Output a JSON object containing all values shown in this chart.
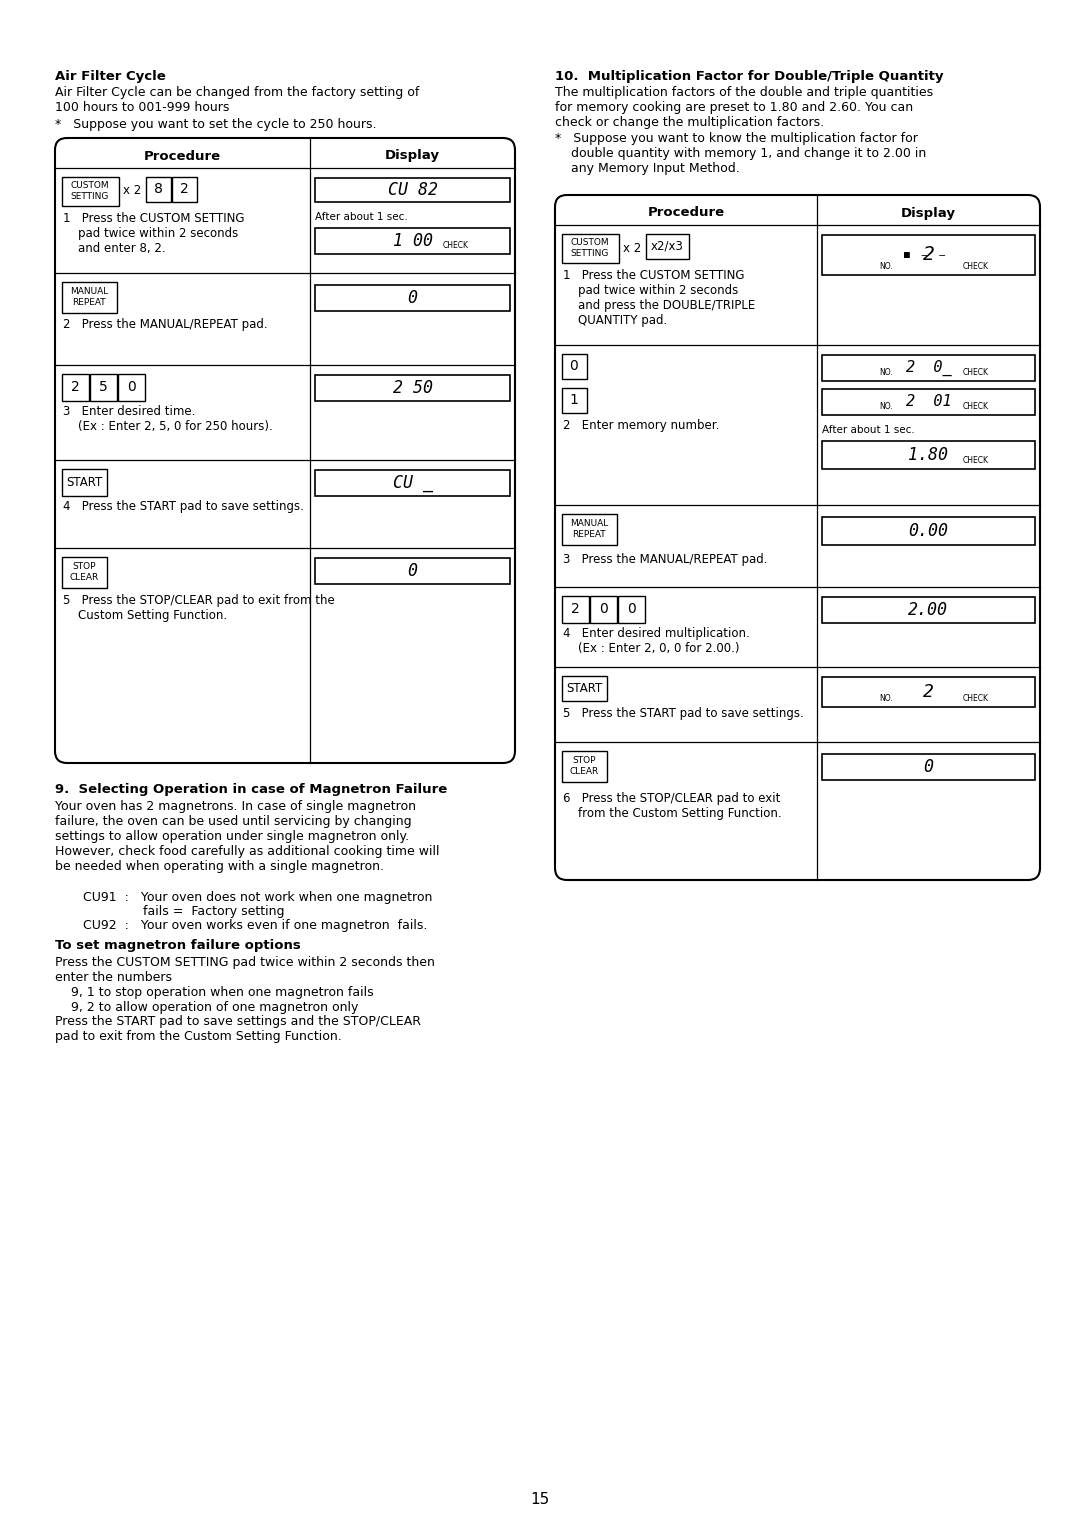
{
  "bg_color": "#ffffff",
  "page_num": "15",
  "left_col": {
    "title": "Air Filter Cycle",
    "para1": "Air Filter Cycle can be changed from the factory setting of\n100 hours to 001-999 hours",
    "bullet1": "*   Suppose you want to set the cycle to 250 hours.",
    "table_header_proc": "Procedure",
    "table_header_disp": "Display",
    "row1_disp_main": "CU 82",
    "row1_after": "After about 1 sec.",
    "row1_disp_sub": "1 00",
    "row1_check": "CHECK",
    "row1_step": "1   Press the CUSTOM SETTING\n    pad twice within 2 seconds\n    and enter 8, 2.",
    "row2_disp": "0",
    "row2_step": "2   Press the MANUAL/REPEAT pad.",
    "row3_keys": [
      "2",
      "5",
      "0"
    ],
    "row3_disp": "2 50",
    "row3_step": "3   Enter desired time.\n    (Ex : Enter 2, 5, 0 for 250 hours).",
    "row4_disp": "CU _",
    "row4_step": "4   Press the START pad to save settings.",
    "row5_disp": "0",
    "row5_step": "5   Press the STOP/CLEAR pad to exit from the\n    Custom Setting Function.",
    "sec9_title": "9.  Selecting Operation in case of Magnetron Failure",
    "sec9_para": "Your oven has 2 magnetrons. In case of single magnetron\nfailure, the oven can be used until servicing by changing\nsettings to allow operation under single magnetron only.\nHowever, check food carefully as additional cooking time will\nbe needed when operating with a single magnetron.",
    "sec9_cu91a": "    CU91  :   Your oven does not work when one magnetron",
    "sec9_cu91b": "                   fails =  Factory setting",
    "sec9_cu92": "    CU92  :   Your oven works even if one magnetron  fails.",
    "sec9_sub_title": "To set magnetron failure options",
    "sec9_sub_para": "Press the CUSTOM SETTING pad twice within 2 seconds then\nenter the numbers\n    9, 1 to stop operation when one magnetron fails\n    9, 2 to allow operation of one magnetron only",
    "sec9_footer": "Press the START pad to save settings and the STOP/CLEAR\npad to exit from the Custom Setting Function."
  },
  "right_col": {
    "title": "10.  Multiplication Factor for Double/Triple Quantity",
    "para1": "The multiplication factors of the double and triple quantities\nfor memory cooking are preset to 1.80 and 2.60. You can\ncheck or change the multiplication factors.",
    "bullet1": "*   Suppose you want to know the multiplication factor for\n    double quantity with memory 1, and change it to 2.00 in\n    any Memory Input Method.",
    "table_header_proc": "Procedure",
    "table_header_disp": "Display",
    "row1_disp": "2",
    "row1_step": "1   Press the CUSTOM SETTING\n    pad twice within 2 seconds\n    and press the DOUBLE/TRIPLE\n    QUANTITY pad.",
    "row2_disp_a": "2  0_",
    "row2_disp_b": "2  01",
    "row2_after": "After about 1 sec.",
    "row2_disp_c": "1.80",
    "row2_check": "CHECK",
    "row2_step": "2   Enter memory number.",
    "row3_disp": "0.00",
    "row3_step": "3   Press the MANUAL/REPEAT pad.",
    "row4_keys": [
      "2",
      "0",
      "0"
    ],
    "row4_disp": "2.00",
    "row4_step": "4   Enter desired multiplication.\n    (Ex : Enter 2, 0, 0 for 2.00.)",
    "row5_disp": "2",
    "row5_step": "5   Press the START pad to save settings.",
    "row6_disp": "0",
    "row6_step": "6   Press the STOP/CLEAR pad to exit\n    from the Custom Setting Function."
  }
}
